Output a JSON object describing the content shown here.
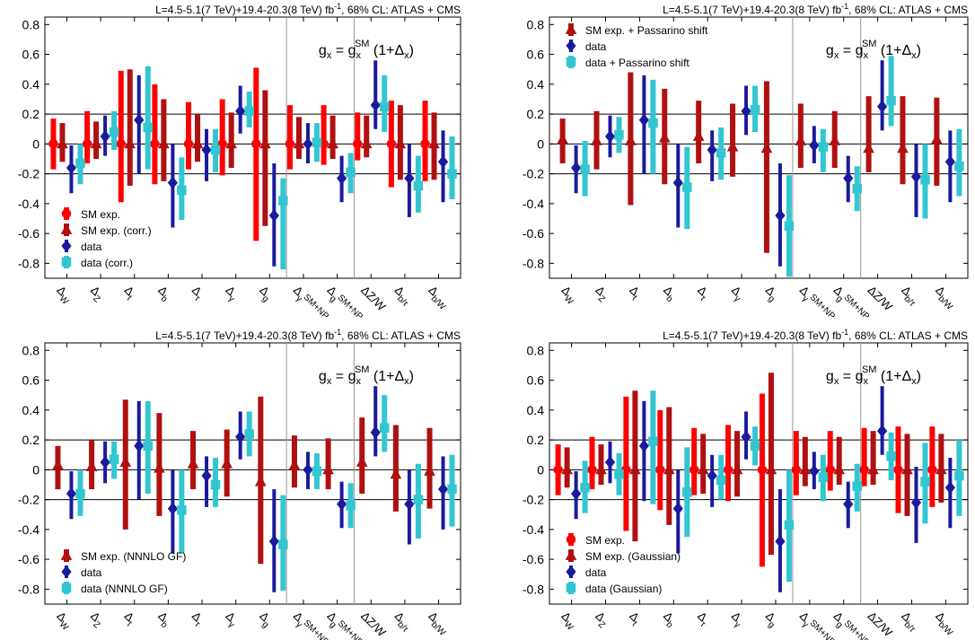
{
  "colors": {
    "sm_red": "#ff0000",
    "sm_darkred": "#b01010",
    "data_blue": "#1a1a9c",
    "data_cyan": "#33c6d1",
    "frame": "#000000",
    "divider": "#999999"
  },
  "chart_data": [
    {
      "type": "scatter",
      "header": "L=4.5-5.1(7 TeV)+19.4-20.3(8 TeV) fb⁻¹, 68% CL: ATLAS + CMS",
      "formula": "gₓ = gₓˢᴹ (1+Δₓ)",
      "categories": [
        "ΔW",
        "ΔZ",
        "Δt",
        "Δb",
        "Δτ",
        "Δγ",
        "Δg",
        "ΔγSM+NP",
        "ΔgSM+NP",
        "ΔZ/W",
        "Δb/τ",
        "Δb/W"
      ],
      "ylim": [
        -0.9,
        0.85
      ],
      "yticks": [
        "0.8",
        "0.6",
        "0.4",
        "0.2",
        "0",
        "-0.2",
        "-0.4",
        "-0.6",
        "-0.8"
      ],
      "hlines": [
        0.2,
        0,
        -0.2
      ],
      "legend_position": "bottom-left",
      "series": [
        {
          "name": "SM exp.",
          "marker": "circle",
          "color_key": "sm_red",
          "offset": -3,
          "values": [
            0,
            0,
            0,
            0,
            0,
            0,
            0,
            0,
            0,
            0,
            0,
            0
          ],
          "lo": [
            -0.17,
            -0.13,
            -0.39,
            -0.27,
            -0.17,
            -0.21,
            -0.65,
            -0.17,
            -0.14,
            -0.11,
            -0.29,
            -0.25
          ],
          "hi": [
            0.17,
            0.22,
            0.49,
            0.4,
            0.28,
            0.3,
            0.51,
            0.26,
            0.26,
            0.21,
            0.29,
            0.29
          ]
        },
        {
          "name": "SM exp. (corr.)",
          "marker": "triangle",
          "color_key": "sm_darkred",
          "offset": -1,
          "values": [
            0,
            0,
            0,
            0,
            0,
            0,
            0,
            0,
            0,
            0,
            0,
            0
          ],
          "lo": [
            -0.12,
            -0.1,
            -0.28,
            -0.25,
            -0.12,
            -0.16,
            -0.55,
            -0.1,
            -0.1,
            -0.09,
            -0.24,
            -0.24
          ],
          "hi": [
            0.14,
            0.15,
            0.5,
            0.3,
            0.2,
            0.21,
            0.36,
            0.18,
            0.19,
            0.19,
            0.26,
            0.21
          ]
        },
        {
          "name": "data",
          "marker": "diamond",
          "color_key": "data_blue",
          "offset": 1,
          "values": [
            -0.16,
            0.05,
            0.16,
            -0.26,
            -0.04,
            0.22,
            -0.48,
            0.0,
            -0.23,
            0.26,
            -0.23,
            -0.12
          ],
          "lo": [
            -0.33,
            -0.08,
            -0.2,
            -0.56,
            -0.25,
            0.07,
            -0.82,
            -0.13,
            -0.39,
            0.1,
            -0.49,
            -0.39
          ],
          "hi": [
            -0.01,
            0.19,
            0.46,
            0.0,
            0.1,
            0.39,
            -0.13,
            0.14,
            -0.08,
            0.56,
            0.0,
            0.09
          ]
        },
        {
          "name": "data (corr.)",
          "marker": "square",
          "color_key": "data_cyan",
          "offset": 3,
          "values": [
            -0.13,
            0.08,
            0.11,
            -0.31,
            -0.04,
            0.22,
            -0.38,
            0.01,
            -0.19,
            0.25,
            -0.28,
            -0.2
          ],
          "lo": [
            -0.27,
            -0.04,
            -0.17,
            -0.51,
            -0.19,
            0.11,
            -0.84,
            -0.12,
            -0.33,
            0.08,
            -0.46,
            -0.37
          ],
          "hi": [
            0.0,
            0.22,
            0.52,
            -0.09,
            0.1,
            0.35,
            -0.23,
            0.14,
            -0.06,
            0.46,
            -0.08,
            0.05
          ]
        }
      ]
    },
    {
      "type": "scatter",
      "header": "L=4.5-5.1(7 TeV)+19.4-20.3(8 TeV) fb⁻¹, 68% CL: ATLAS + CMS",
      "formula": "gₓ = gₓˢᴹ (1+Δₓ)",
      "categories": [
        "ΔW",
        "ΔZ",
        "Δt",
        "Δb",
        "Δτ",
        "Δγ",
        "Δg",
        "ΔγSM+NP",
        "ΔgSM+NP",
        "ΔZ/W",
        "Δb/τ",
        "Δb/W"
      ],
      "ylim": [
        -0.9,
        0.85
      ],
      "yticks": [
        "0.8",
        "0.6",
        "0.4",
        "0.2",
        "0",
        "-0.2",
        "-0.4",
        "-0.6",
        "-0.8"
      ],
      "hlines": [
        0.2,
        0,
        -0.2
      ],
      "legend_position": "top-left",
      "series": [
        {
          "name": "SM exp. + Passarino shift",
          "marker": "triangle",
          "color_key": "sm_darkred",
          "offset": -2,
          "values": [
            0.03,
            0.02,
            0.02,
            0.04,
            0.05,
            -0.02,
            -0.03,
            0.02,
            0.02,
            -0.03,
            -0.03,
            0.03
          ],
          "lo": [
            -0.13,
            -0.17,
            -0.41,
            -0.27,
            -0.13,
            -0.22,
            -0.73,
            -0.16,
            -0.16,
            -0.19,
            -0.27,
            -0.28
          ],
          "hi": [
            0.17,
            0.22,
            0.48,
            0.37,
            0.29,
            0.27,
            0.42,
            0.27,
            0.22,
            0.32,
            0.32,
            0.31
          ]
        },
        {
          "name": "data",
          "marker": "diamond",
          "color_key": "data_blue",
          "offset": 1,
          "values": [
            -0.16,
            0.05,
            0.16,
            -0.26,
            -0.04,
            0.22,
            -0.48,
            -0.01,
            -0.23,
            0.25,
            -0.22,
            -0.12
          ],
          "lo": [
            -0.33,
            -0.09,
            -0.2,
            -0.56,
            -0.25,
            0.06,
            -0.82,
            -0.13,
            -0.39,
            0.09,
            -0.49,
            -0.39
          ],
          "hi": [
            -0.01,
            0.19,
            0.46,
            0.0,
            0.09,
            0.39,
            -0.13,
            0.12,
            -0.08,
            0.56,
            0.0,
            0.09
          ]
        },
        {
          "name": "data + Passarino shift",
          "marker": "square",
          "color_key": "data_cyan",
          "offset": 3,
          "values": [
            -0.17,
            0.06,
            0.14,
            -0.29,
            -0.06,
            0.23,
            -0.55,
            -0.02,
            -0.3,
            0.29,
            -0.24,
            -0.15
          ],
          "lo": [
            -0.35,
            -0.06,
            -0.2,
            -0.57,
            -0.24,
            0.08,
            -0.89,
            -0.19,
            -0.45,
            0.12,
            -0.5,
            -0.35
          ],
          "hi": [
            0.02,
            0.18,
            0.43,
            -0.02,
            0.11,
            0.39,
            -0.21,
            0.1,
            -0.15,
            0.59,
            0.0,
            0.1
          ]
        }
      ]
    },
    {
      "type": "scatter",
      "header": "L=4.5-5.1(7 TeV)+19.4-20.3(8 TeV) fb⁻¹, 68% CL: ATLAS + CMS",
      "formula": "gₓ = gₓˢᴹ (1+Δₓ)",
      "categories": [
        "ΔW",
        "ΔZ",
        "Δt",
        "Δb",
        "Δτ",
        "Δγ",
        "Δg",
        "ΔγSM+NP",
        "ΔgSM+NP",
        "ΔZ/W",
        "Δb/τ",
        "Δb/W"
      ],
      "ylim": [
        -0.9,
        0.85
      ],
      "yticks": [
        "0.8",
        "0.6",
        "0.4",
        "0.2",
        "0",
        "-0.2",
        "-0.4",
        "-0.6",
        "-0.8"
      ],
      "hlines": [
        0.2,
        0,
        -0.2
      ],
      "legend_position": "bottom-left",
      "series": [
        {
          "name": "SM exp. (NNNLO GF)",
          "marker": "triangle",
          "color_key": "sm_darkred",
          "offset": -2,
          "values": [
            0.03,
            0.02,
            0.05,
            0.01,
            0.04,
            0.04,
            -0.08,
            0.03,
            0.0,
            0.05,
            -0.03,
            -0.01
          ],
          "lo": [
            -0.13,
            -0.13,
            -0.4,
            -0.31,
            -0.13,
            -0.18,
            -0.63,
            -0.12,
            -0.13,
            -0.16,
            -0.28,
            -0.26
          ],
          "hi": [
            0.16,
            0.2,
            0.47,
            0.38,
            0.26,
            0.27,
            0.49,
            0.23,
            0.21,
            0.35,
            0.3,
            0.28
          ]
        },
        {
          "name": "data",
          "marker": "diamond",
          "color_key": "data_blue",
          "offset": 1,
          "values": [
            -0.16,
            0.05,
            0.16,
            -0.26,
            -0.04,
            0.22,
            -0.48,
            0.0,
            -0.23,
            0.25,
            -0.23,
            -0.13
          ],
          "lo": [
            -0.33,
            -0.09,
            -0.2,
            -0.56,
            -0.25,
            0.07,
            -0.82,
            -0.13,
            -0.39,
            0.09,
            -0.5,
            -0.4
          ],
          "hi": [
            -0.01,
            0.19,
            0.46,
            0.0,
            0.09,
            0.39,
            -0.13,
            0.12,
            -0.08,
            0.56,
            0.0,
            0.09
          ]
        },
        {
          "name": "data (NNNLO GF)",
          "marker": "square",
          "color_key": "data_cyan",
          "offset": 3,
          "values": [
            -0.16,
            0.07,
            0.16,
            -0.27,
            -0.1,
            0.24,
            -0.5,
            -0.01,
            -0.24,
            0.28,
            -0.2,
            -0.13
          ],
          "lo": [
            -0.31,
            -0.06,
            -0.16,
            -0.56,
            -0.25,
            0.09,
            -0.81,
            -0.13,
            -0.39,
            0.12,
            -0.46,
            -0.38
          ],
          "hi": [
            0.0,
            0.19,
            0.46,
            0.0,
            0.08,
            0.39,
            -0.17,
            0.11,
            -0.09,
            0.5,
            0.04,
            0.1
          ]
        }
      ]
    },
    {
      "type": "scatter",
      "header": "L=4.5-5.1(7 TeV)+19.4-20.3(8 TeV) fb⁻¹, 68% CL: ATLAS + CMS",
      "formula": "gₓ = gₓˢᴹ (1+Δₓ)",
      "categories": [
        "ΔW",
        "ΔZ",
        "Δt",
        "Δb",
        "Δτ",
        "Δγ",
        "Δg",
        "ΔγSM+NP",
        "ΔgSM+NP",
        "ΔZ/W",
        "Δb/τ",
        "Δb/W"
      ],
      "ylim": [
        -0.9,
        0.85
      ],
      "yticks": [
        "0.8",
        "0.6",
        "0.4",
        "0.2",
        "0",
        "-0.2",
        "-0.4",
        "-0.6",
        "-0.8"
      ],
      "hlines": [
        0.2,
        0,
        -0.2
      ],
      "legend_position": "bottom-left",
      "series": [
        {
          "name": "SM exp.",
          "marker": "circle",
          "color_key": "sm_red",
          "offset": -3,
          "values": [
            0,
            0,
            0,
            0,
            0,
            0,
            0,
            0,
            0,
            0,
            0,
            0
          ],
          "lo": [
            -0.17,
            -0.13,
            -0.41,
            -0.27,
            -0.17,
            -0.21,
            -0.65,
            -0.17,
            -0.14,
            -0.11,
            -0.29,
            -0.25
          ],
          "hi": [
            0.17,
            0.22,
            0.49,
            0.4,
            0.28,
            0.3,
            0.51,
            0.26,
            0.26,
            0.28,
            0.29,
            0.29
          ]
        },
        {
          "name": "SM exp. (Gaussian)",
          "marker": "triangle",
          "color_key": "sm_darkred",
          "offset": -1,
          "values": [
            0,
            0,
            0,
            0,
            0,
            0,
            0,
            0,
            0,
            0,
            0,
            0
          ],
          "lo": [
            -0.12,
            -0.1,
            -0.48,
            -0.37,
            -0.16,
            -0.18,
            -0.57,
            -0.11,
            -0.1,
            -0.1,
            -0.31,
            -0.22
          ],
          "hi": [
            0.15,
            0.17,
            0.53,
            0.42,
            0.24,
            0.26,
            0.65,
            0.22,
            0.22,
            0.26,
            0.24,
            0.24
          ]
        },
        {
          "name": "data",
          "marker": "diamond",
          "color_key": "data_blue",
          "offset": 1,
          "values": [
            -0.16,
            0.05,
            0.16,
            -0.26,
            -0.04,
            0.22,
            -0.48,
            -0.01,
            -0.23,
            0.26,
            -0.22,
            -0.12
          ],
          "lo": [
            -0.33,
            -0.09,
            -0.21,
            -0.56,
            -0.25,
            0.07,
            -0.82,
            -0.13,
            -0.39,
            0.1,
            -0.49,
            -0.39
          ],
          "hi": [
            -0.01,
            0.19,
            0.46,
            0.0,
            0.1,
            0.39,
            -0.13,
            0.12,
            -0.08,
            0.56,
            0.02,
            0.08
          ]
        },
        {
          "name": "data (Gaussian)",
          "marker": "square",
          "color_key": "data_cyan",
          "offset": 3,
          "values": [
            -0.12,
            -0.03,
            0.19,
            -0.15,
            -0.07,
            0.16,
            -0.37,
            -0.05,
            -0.11,
            0.09,
            -0.08,
            -0.04
          ],
          "lo": [
            -0.29,
            -0.17,
            -0.23,
            -0.45,
            -0.2,
            0.03,
            -0.75,
            -0.21,
            -0.28,
            -0.07,
            -0.36,
            -0.31
          ],
          "hi": [
            0.06,
            0.11,
            0.53,
            0.15,
            0.1,
            0.29,
            0.0,
            0.1,
            0.04,
            0.25,
            0.18,
            0.2
          ]
        }
      ]
    }
  ]
}
